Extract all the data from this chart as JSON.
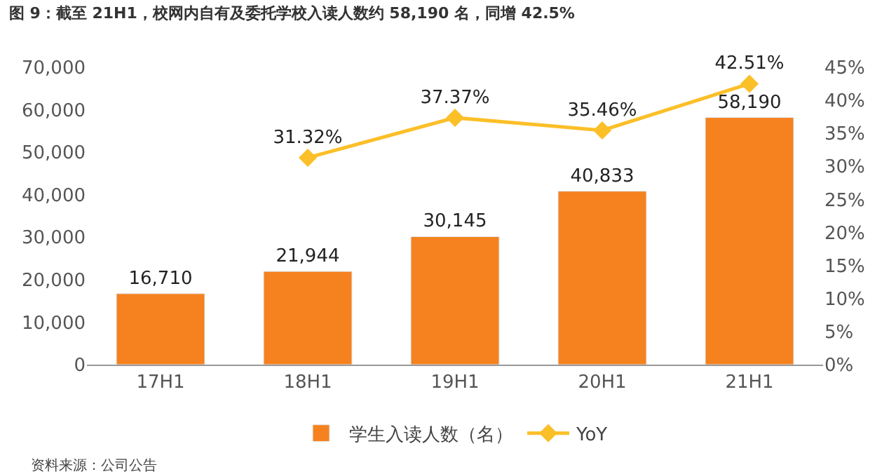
{
  "chart_data": {
    "type": "bar",
    "title": "图 9：截至 21H1，校网内自有及委托学校入读人数约 58,190 名，同增 42.5%",
    "categories": [
      "17H1",
      "18H1",
      "19H1",
      "20H1",
      "21H1"
    ],
    "series": [
      {
        "name": "学生入读人数（名）",
        "color": "#f5821f",
        "values": [
          16710,
          21944,
          30145,
          40833,
          58190
        ],
        "value_labels": [
          "16,710",
          "21,944",
          "30,145",
          "40,833",
          "58,190"
        ]
      },
      {
        "name": "YoY",
        "type": "line",
        "axis": "y2",
        "color": "#fbbf28",
        "marker": "diamond",
        "values": [
          null,
          31.32,
          37.37,
          35.46,
          42.51
        ],
        "value_labels": [
          null,
          "31.32%",
          "37.37%",
          "35.46%",
          "42.51%"
        ]
      }
    ],
    "ylim": [
      0,
      70000
    ],
    "yticks": [
      0,
      {
        "value": 10000,
        "label": "10,000"
      },
      {
        "value": 20000,
        "label": "20,000"
      },
      {
        "value": 30000,
        "label": "30,000"
      },
      {
        "value": 40000,
        "label": "40,000"
      },
      {
        "value": 50000,
        "label": "50,000"
      },
      {
        "value": 60000,
        "label": "60,000"
      },
      {
        "value": 70000,
        "label": "70,000"
      }
    ],
    "y2lim": [
      0,
      45
    ],
    "y2ticks": [
      {
        "value": 0,
        "label": "0%"
      },
      {
        "value": 5,
        "label": "5%"
      },
      {
        "value": 10,
        "label": "10%"
      },
      {
        "value": 15,
        "label": "15%"
      },
      {
        "value": 20,
        "label": "20%"
      },
      {
        "value": 25,
        "label": "25%"
      },
      {
        "value": 30,
        "label": "30%"
      },
      {
        "value": 35,
        "label": "35%"
      },
      {
        "value": 40,
        "label": "40%"
      },
      {
        "value": 45,
        "label": "45%"
      }
    ],
    "legend": "bottom",
    "annotations": [
      "资料来源：公司公告"
    ]
  }
}
